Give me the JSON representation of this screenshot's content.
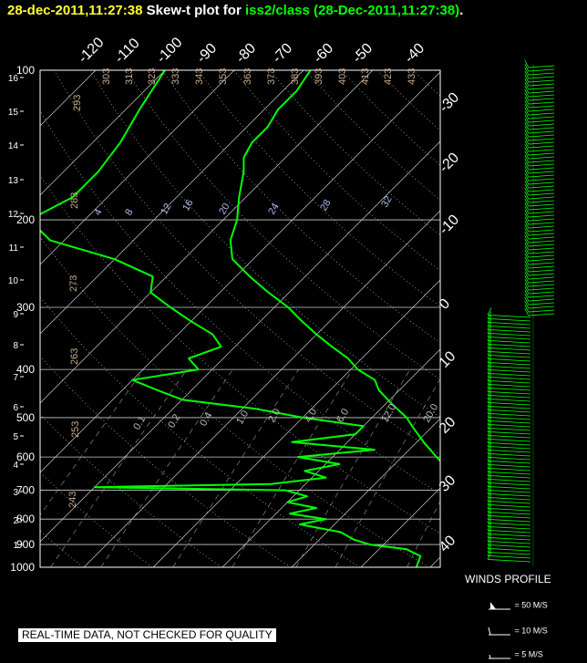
{
  "header": {
    "date": "28-dec-2011,11:27:38",
    "mid": "Skew-t plot for",
    "station": "iss2/class",
    "paren": "(28-Dec-2011,11:27:38)",
    "end": "."
  },
  "winds": {
    "title": "WINDS PROFILE",
    "legend": [
      "= 50 M/S",
      "= 10 M/S",
      "= 5 M/S"
    ]
  },
  "disclaimer": "REAL-TIME DATA, NOT CHECKED FOR QUALITY",
  "colors": {
    "temperature": "#00ff00",
    "dewpoint": "#00ff00",
    "grid": "#ffffff",
    "theta_label": "#c8aa88",
    "mixing_label": "#aabbee",
    "axis_text": "#ffffff"
  },
  "chart_data": {
    "type": "line",
    "title": "Skew-t plot for iss2/class (28-Dec-2011,11:27:38)",
    "pressure_ticks": [
      100,
      200,
      300,
      400,
      500,
      600,
      700,
      800,
      900,
      1000
    ],
    "height_km_ticks": [
      1,
      2,
      3,
      4,
      5,
      6,
      7,
      8,
      9,
      10,
      11,
      12,
      13,
      14,
      15,
      16
    ],
    "temperature_top_ticks": [
      -120,
      -110,
      -100,
      -90,
      -80,
      -70,
      -60,
      -50,
      -40
    ],
    "temperature_right_ticks": [
      -30,
      -20,
      -10,
      0,
      10,
      20,
      30,
      40
    ],
    "theta_labels": [
      "293",
      "303",
      "313",
      "323",
      "333",
      "343",
      "353",
      "363",
      "373",
      "383",
      "393",
      "403",
      "413",
      "423",
      "433",
      "283",
      "273",
      "263",
      "253",
      "243"
    ],
    "mixing_ratio_labels_upper": [
      "4",
      "8",
      "12",
      "16",
      "20",
      "24",
      "28",
      "32"
    ],
    "mixing_ratio_labels_lower": [
      "0.1",
      "0.2",
      "0.4",
      "1.0",
      "2.0",
      "4.0",
      "6.0",
      "12.0",
      "20.0"
    ],
    "ylim": [
      1000,
      100
    ],
    "series": [
      {
        "name": "temperature",
        "p": [
          1000,
          950,
          920,
          900,
          880,
          850,
          820,
          800,
          760,
          720,
          700,
          650,
          620,
          600,
          560,
          520,
          500,
          470,
          440,
          420,
          400,
          380,
          360,
          340,
          320,
          300,
          280,
          260,
          240,
          220,
          200,
          180,
          160,
          150,
          140,
          130,
          120,
          110,
          100
        ],
        "t": [
          25,
          22,
          21,
          20,
          19,
          18,
          17,
          16,
          14,
          13,
          12,
          9,
          7,
          5,
          1,
          -3,
          -5,
          -9,
          -13,
          -15,
          -19,
          -22,
          -26,
          -30,
          -34,
          -38,
          -43,
          -48,
          -53,
          -56,
          -58,
          -61,
          -64,
          -66,
          -67,
          -67,
          -68,
          -68,
          -69
        ]
      },
      {
        "name": "dewpoint",
        "p": [
          1000,
          950,
          920,
          900,
          880,
          850,
          820,
          800,
          780,
          760,
          740,
          720,
          700,
          690,
          680,
          660,
          640,
          620,
          600,
          580,
          560,
          540,
          520,
          500,
          480,
          460,
          440,
          420,
          400,
          380,
          360,
          340,
          320,
          300,
          280,
          260,
          240,
          220,
          200,
          180,
          160,
          140,
          120,
          100
        ],
        "t": [
          18,
          17,
          14,
          8,
          5,
          2,
          -5,
          -2,
          -8,
          -5,
          -10,
          -8,
          -12,
          -40,
          -15,
          -8,
          -12,
          -8,
          -15,
          -5,
          -18,
          -10,
          -10,
          -20,
          -28,
          -40,
          -45,
          -50,
          -42,
          -45,
          -42,
          -45,
          -50,
          -55,
          -60,
          -62,
          -70,
          -82,
          -88,
          -85,
          -85,
          -86,
          -88,
          -90
        ]
      }
    ],
    "wind_profile": true
  }
}
